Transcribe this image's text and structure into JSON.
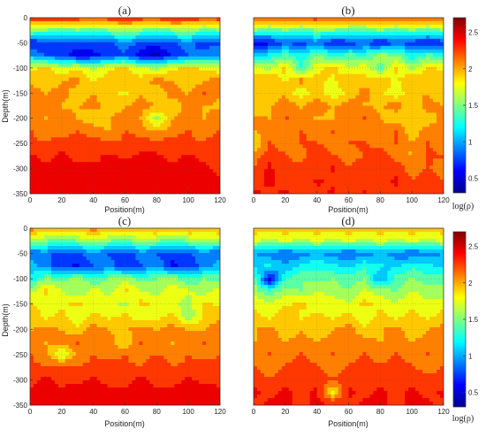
{
  "colors": {
    "colormap_jet": [
      "#00008f",
      "#0000ff",
      "#0080ff",
      "#00ffff",
      "#80ff80",
      "#ffff00",
      "#ff8000",
      "#ff0000",
      "#800000"
    ],
    "frame": "#333333"
  },
  "chart_data": [
    {
      "type": "heatmap",
      "title": "(a)",
      "xlabel": "Position(m)",
      "ylabel": "Depth(m)",
      "xlim": [
        0,
        120
      ],
      "ylim": [
        -350,
        0
      ],
      "xticks": [
        "0",
        "20",
        "40",
        "60",
        "80",
        "100",
        "120"
      ],
      "yticks": [
        "0",
        "-50",
        "-100",
        "-150",
        "-200",
        "-250",
        "-300",
        "-350"
      ],
      "grid": true,
      "x": [
        0,
        10,
        20,
        30,
        40,
        50,
        60,
        70,
        80,
        90,
        100,
        110,
        120
      ],
      "y": [
        0,
        -25,
        -50,
        -75,
        -100,
        -125,
        -150,
        -175,
        -200,
        -225,
        -250,
        -275,
        -300,
        -325,
        -350
      ],
      "z": [
        [
          2.3,
          2.3,
          2.4,
          2.3,
          2.3,
          2.3,
          2.4,
          2.3,
          2.3,
          2.4,
          2.3,
          2.3,
          2.3
        ],
        [
          1.6,
          1.5,
          1.4,
          1.5,
          1.4,
          1.5,
          1.6,
          1.5,
          1.4,
          1.5,
          1.6,
          1.4,
          1.5
        ],
        [
          0.6,
          0.7,
          0.8,
          0.8,
          0.7,
          0.8,
          0.9,
          0.8,
          0.7,
          0.8,
          0.9,
          0.7,
          0.8
        ],
        [
          1.0,
          0.8,
          0.7,
          0.5,
          0.6,
          0.7,
          0.8,
          0.5,
          0.4,
          0.7,
          0.8,
          0.9,
          1.0
        ],
        [
          1.8,
          1.9,
          1.7,
          1.8,
          1.6,
          1.8,
          1.9,
          1.7,
          1.6,
          1.8,
          1.9,
          1.8,
          1.7
        ],
        [
          2.0,
          1.9,
          2.0,
          2.1,
          1.8,
          2.0,
          2.0,
          1.9,
          2.1,
          2.0,
          1.9,
          2.0,
          2.1
        ],
        [
          2.1,
          2.0,
          2.1,
          1.9,
          2.0,
          1.9,
          1.8,
          2.0,
          1.9,
          2.1,
          2.0,
          2.2,
          2.0
        ],
        [
          2.0,
          2.1,
          2.0,
          2.0,
          2.1,
          1.9,
          2.0,
          2.1,
          2.0,
          1.9,
          2.1,
          2.0,
          2.0
        ],
        [
          2.1,
          2.0,
          2.1,
          2.0,
          1.9,
          2.0,
          2.1,
          2.0,
          1.6,
          2.0,
          2.1,
          2.0,
          2.1
        ],
        [
          2.2,
          2.1,
          2.1,
          2.2,
          2.1,
          2.0,
          2.2,
          2.1,
          2.0,
          2.1,
          2.2,
          2.1,
          2.2
        ],
        [
          2.2,
          2.2,
          2.3,
          2.2,
          2.3,
          2.2,
          2.2,
          2.3,
          2.2,
          2.3,
          2.2,
          2.2,
          2.3
        ],
        [
          2.4,
          2.3,
          2.4,
          2.3,
          2.3,
          2.4,
          2.3,
          2.4,
          2.4,
          2.3,
          2.4,
          2.3,
          2.2
        ],
        [
          2.4,
          2.4,
          2.4,
          2.4,
          2.4,
          2.4,
          2.5,
          2.4,
          2.4,
          2.4,
          2.4,
          2.4,
          2.3
        ],
        [
          2.4,
          2.4,
          2.5,
          2.4,
          2.4,
          2.5,
          2.4,
          2.4,
          2.5,
          2.4,
          2.4,
          2.4,
          2.4
        ],
        [
          2.4,
          2.5,
          2.4,
          2.4,
          2.5,
          2.4,
          2.4,
          2.5,
          2.4,
          2.4,
          2.4,
          2.5,
          2.4
        ]
      ]
    },
    {
      "type": "heatmap",
      "title": "(b)",
      "xlabel": "Position(m)",
      "ylabel": "",
      "xlim": [
        0,
        120
      ],
      "ylim": [
        -350,
        0
      ],
      "xticks": [
        "0",
        "20",
        "40",
        "60",
        "80",
        "100",
        "120"
      ],
      "yticks": [],
      "grid": true,
      "x": [
        0,
        10,
        20,
        30,
        40,
        50,
        60,
        70,
        80,
        90,
        100,
        110,
        120
      ],
      "y": [
        0,
        -25,
        -50,
        -75,
        -100,
        -125,
        -150,
        -175,
        -200,
        -225,
        -250,
        -275,
        -300,
        -325,
        -350
      ],
      "z": [
        [
          2.2,
          2.3,
          2.2,
          2.3,
          2.3,
          2.2,
          2.3,
          2.3,
          2.2,
          2.3,
          2.2,
          2.3,
          2.2
        ],
        [
          1.5,
          1.4,
          1.5,
          1.4,
          1.5,
          1.5,
          1.4,
          1.4,
          1.5,
          1.4,
          1.5,
          1.4,
          1.5
        ],
        [
          0.5,
          0.6,
          0.8,
          0.7,
          0.9,
          0.6,
          0.7,
          0.8,
          0.6,
          0.8,
          0.7,
          0.6,
          0.7
        ],
        [
          1.0,
          1.2,
          1.4,
          1.2,
          1.5,
          1.3,
          1.4,
          1.3,
          1.6,
          1.5,
          1.2,
          1.4,
          1.3
        ],
        [
          1.8,
          1.6,
          1.9,
          1.3,
          1.8,
          1.9,
          1.7,
          1.8,
          1.4,
          1.9,
          1.6,
          1.9,
          1.8
        ],
        [
          1.9,
          2.0,
          1.8,
          2.1,
          1.9,
          1.8,
          2.0,
          1.9,
          2.0,
          1.8,
          2.0,
          1.9,
          2.0
        ],
        [
          2.0,
          1.9,
          2.0,
          1.7,
          2.0,
          1.7,
          1.9,
          2.1,
          1.9,
          1.7,
          2.0,
          2.0,
          1.9
        ],
        [
          1.8,
          2.0,
          2.1,
          2.0,
          2.1,
          2.0,
          2.1,
          2.0,
          2.0,
          2.1,
          1.9,
          2.1,
          2.0
        ],
        [
          2.1,
          2.0,
          2.2,
          2.1,
          2.0,
          2.0,
          2.1,
          2.2,
          2.0,
          1.9,
          2.0,
          1.9,
          2.1
        ],
        [
          2.0,
          2.1,
          2.0,
          2.2,
          2.1,
          2.2,
          2.0,
          2.1,
          2.1,
          2.2,
          1.9,
          2.1,
          2.0
        ],
        [
          1.8,
          2.2,
          2.1,
          2.2,
          2.2,
          2.1,
          2.2,
          2.2,
          2.1,
          2.2,
          2.0,
          2.2,
          2.1
        ],
        [
          2.1,
          2.3,
          2.2,
          2.1,
          2.3,
          2.2,
          2.1,
          2.2,
          2.3,
          2.1,
          2.0,
          2.2,
          2.2
        ],
        [
          2.2,
          2.4,
          2.2,
          2.3,
          2.2,
          2.4,
          2.2,
          2.3,
          2.2,
          2.3,
          2.1,
          2.2,
          2.1
        ],
        [
          2.3,
          2.4,
          2.3,
          2.2,
          2.4,
          2.3,
          2.3,
          2.2,
          2.3,
          2.4,
          2.2,
          2.3,
          2.2
        ],
        [
          2.4,
          2.3,
          2.4,
          2.3,
          2.3,
          2.4,
          2.2,
          2.4,
          2.3,
          2.3,
          2.2,
          2.3,
          2.3
        ]
      ]
    },
    {
      "type": "heatmap",
      "title": "(c)",
      "xlabel": "Position(m)",
      "ylabel": "Depth(m)",
      "xlim": [
        0,
        120
      ],
      "ylim": [
        -350,
        0
      ],
      "xticks": [
        "0",
        "20",
        "40",
        "60",
        "80",
        "100",
        "120"
      ],
      "yticks": [
        "0",
        "-50",
        "-100",
        "-150",
        "-200",
        "-250",
        "-300",
        "-350"
      ],
      "grid": true,
      "x": [
        0,
        10,
        20,
        30,
        40,
        50,
        60,
        70,
        80,
        90,
        100,
        110,
        120
      ],
      "y": [
        0,
        -25,
        -50,
        -75,
        -100,
        -125,
        -150,
        -175,
        -200,
        -225,
        -250,
        -275,
        -300,
        -325,
        -350
      ],
      "z": [
        [
          2.1,
          2.0,
          2.1,
          2.0,
          2.1,
          2.0,
          2.1,
          2.0,
          2.1,
          2.0,
          2.1,
          2.0,
          2.1
        ],
        [
          1.6,
          1.5,
          1.4,
          1.5,
          1.6,
          1.5,
          1.4,
          1.6,
          1.5,
          1.4,
          1.5,
          1.6,
          1.5
        ],
        [
          0.8,
          0.9,
          0.7,
          0.8,
          0.9,
          0.8,
          0.7,
          0.9,
          0.8,
          0.7,
          0.8,
          0.9,
          0.8
        ],
        [
          1.1,
          0.9,
          0.7,
          0.6,
          0.8,
          0.9,
          0.7,
          0.8,
          1.0,
          0.6,
          0.7,
          0.9,
          1.1
        ],
        [
          1.2,
          1.5,
          1.4,
          1.6,
          1.3,
          1.5,
          1.6,
          1.4,
          1.5,
          1.6,
          1.3,
          1.5,
          1.4
        ],
        [
          1.6,
          1.9,
          1.7,
          1.5,
          1.8,
          1.6,
          1.9,
          1.7,
          1.6,
          1.8,
          1.7,
          1.6,
          1.8
        ],
        [
          1.9,
          1.7,
          1.8,
          1.9,
          1.7,
          1.8,
          1.6,
          1.9,
          1.8,
          1.7,
          1.6,
          1.9,
          1.8
        ],
        [
          2.0,
          1.8,
          1.9,
          1.7,
          1.9,
          1.8,
          1.9,
          1.7,
          1.8,
          1.9,
          1.5,
          1.9,
          2.0
        ],
        [
          2.0,
          2.1,
          2.0,
          1.9,
          2.1,
          2.0,
          2.0,
          2.1,
          2.0,
          2.1,
          2.0,
          2.0,
          2.1
        ],
        [
          2.1,
          2.0,
          2.1,
          2.2,
          2.0,
          2.1,
          1.8,
          2.2,
          2.1,
          2.0,
          2.1,
          2.2,
          2.1
        ],
        [
          2.2,
          2.1,
          1.6,
          2.1,
          2.2,
          2.1,
          2.2,
          2.1,
          2.2,
          2.1,
          2.2,
          2.1,
          2.2
        ],
        [
          2.2,
          2.2,
          2.3,
          2.2,
          2.2,
          2.3,
          2.2,
          2.2,
          2.3,
          2.2,
          2.2,
          2.3,
          2.2
        ],
        [
          2.3,
          2.4,
          2.3,
          2.3,
          2.4,
          2.3,
          2.3,
          2.4,
          2.3,
          2.3,
          2.4,
          2.3,
          2.3
        ],
        [
          2.4,
          2.4,
          2.4,
          2.5,
          2.4,
          2.4,
          2.4,
          2.5,
          2.4,
          2.4,
          2.4,
          2.5,
          2.4
        ],
        [
          2.4,
          2.5,
          2.4,
          2.4,
          2.5,
          2.4,
          2.5,
          2.4,
          2.4,
          2.5,
          2.4,
          2.4,
          2.5
        ]
      ]
    },
    {
      "type": "heatmap",
      "title": "(d)",
      "xlabel": "Position(m)",
      "ylabel": "",
      "xlim": [
        0,
        120
      ],
      "ylim": [
        -350,
        0
      ],
      "xticks": [
        "0",
        "20",
        "40",
        "60",
        "80",
        "100",
        "120"
      ],
      "yticks": [],
      "grid": true,
      "x": [
        0,
        10,
        20,
        30,
        40,
        50,
        60,
        70,
        80,
        90,
        100,
        110,
        120
      ],
      "y": [
        0,
        -25,
        -50,
        -75,
        -100,
        -125,
        -150,
        -175,
        -200,
        -225,
        -250,
        -275,
        -300,
        -325,
        -350
      ],
      "z": [
        [
          2.0,
          1.9,
          2.0,
          1.9,
          2.0,
          1.9,
          2.0,
          1.9,
          2.0,
          1.9,
          2.0,
          1.9,
          2.0
        ],
        [
          1.7,
          1.6,
          1.7,
          1.6,
          1.7,
          1.6,
          1.7,
          1.6,
          1.7,
          1.6,
          1.7,
          1.6,
          1.7
        ],
        [
          1.0,
          0.9,
          0.8,
          0.9,
          1.0,
          0.9,
          0.8,
          0.9,
          1.0,
          0.9,
          0.8,
          0.9,
          1.0
        ],
        [
          1.1,
          1.2,
          1.0,
          1.2,
          1.3,
          1.2,
          1.1,
          1.3,
          1.2,
          1.1,
          1.3,
          1.2,
          1.1
        ],
        [
          1.5,
          0.5,
          1.3,
          1.5,
          1.4,
          1.5,
          1.4,
          1.5,
          0.9,
          1.4,
          1.5,
          1.4,
          1.5
        ],
        [
          1.6,
          1.4,
          1.6,
          1.5,
          1.7,
          1.6,
          1.5,
          1.7,
          1.6,
          1.5,
          1.7,
          1.6,
          1.5
        ],
        [
          1.8,
          1.7,
          1.8,
          1.9,
          1.7,
          1.8,
          1.7,
          1.9,
          1.8,
          1.7,
          1.8,
          1.7,
          1.8
        ],
        [
          1.9,
          1.8,
          2.0,
          1.8,
          1.9,
          1.8,
          1.9,
          1.7,
          1.9,
          1.8,
          1.9,
          1.8,
          1.9
        ],
        [
          2.0,
          2.1,
          1.9,
          2.0,
          1.9,
          2.0,
          2.1,
          1.9,
          2.0,
          2.1,
          1.9,
          2.0,
          2.1
        ],
        [
          2.0,
          2.1,
          2.0,
          2.1,
          2.0,
          2.1,
          2.0,
          2.1,
          2.0,
          2.1,
          2.0,
          2.1,
          2.0
        ],
        [
          2.1,
          2.2,
          2.1,
          2.2,
          2.1,
          2.2,
          2.1,
          2.2,
          2.1,
          2.2,
          2.1,
          2.2,
          2.1
        ],
        [
          2.2,
          2.1,
          2.2,
          2.3,
          2.2,
          2.1,
          2.2,
          2.3,
          2.2,
          2.3,
          2.2,
          2.1,
          2.2
        ],
        [
          2.3,
          2.2,
          2.3,
          2.2,
          2.3,
          2.2,
          2.3,
          2.2,
          2.3,
          2.2,
          2.3,
          2.3,
          2.2
        ],
        [
          2.4,
          2.3,
          2.4,
          2.3,
          2.4,
          1.8,
          2.4,
          2.3,
          2.4,
          2.3,
          2.4,
          2.3,
          2.4
        ],
        [
          2.3,
          2.4,
          2.4,
          2.3,
          2.4,
          2.4,
          2.3,
          2.4,
          2.4,
          2.3,
          2.4,
          2.4,
          2.3
        ]
      ]
    }
  ],
  "colorbars": [
    {
      "label": "log(ρ)",
      "range": [
        0.3,
        2.7
      ],
      "ticks": [
        "0.5",
        "1",
        "1.5",
        "2",
        "2.5"
      ]
    },
    {
      "label": "log(ρ)",
      "range": [
        0.3,
        2.7
      ],
      "ticks": [
        "0.5",
        "1",
        "1.5",
        "2",
        "2.5"
      ]
    }
  ]
}
